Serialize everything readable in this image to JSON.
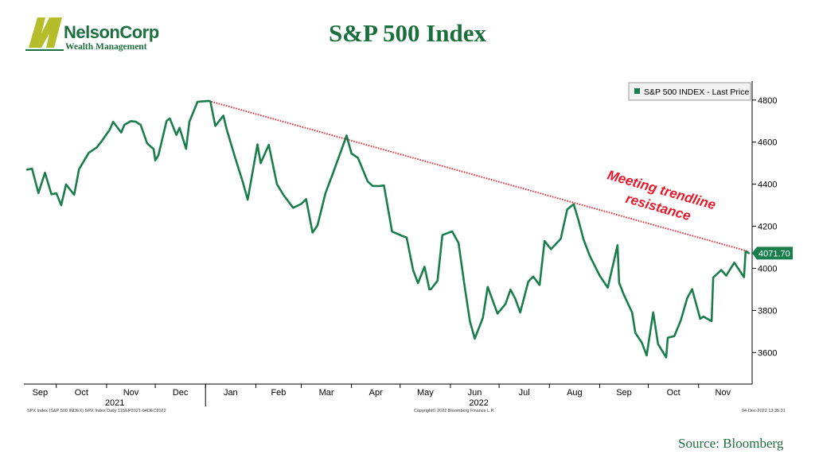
{
  "brand": {
    "logo_mark": "N",
    "name": "NelsonCorp",
    "subtitle": "Wealth Management",
    "colors": {
      "green": "#1d6f3f",
      "olive": "#b5bd2b"
    }
  },
  "page_title": "S&P 500 Index",
  "source": "Source:  Bloomberg",
  "footer": {
    "left": "SPX Index (S&P 500 INDEX) SPX Index  Daily 11SEP2021-04DEC2022",
    "middle": "Copyright© 2022 Bloomberg Finance L.P.",
    "right": "04-Dec-2022 13:35:31"
  },
  "colors": {
    "series": "#1a7d4c",
    "trendline": "#e8333a",
    "annotation": "#e8182a"
  },
  "chart_data": {
    "type": "line",
    "title": "",
    "xlabel": "",
    "ylabel": "",
    "ylim": [
      3450,
      4890
    ],
    "yticks": [
      3600,
      3800,
      4000,
      4200,
      4400,
      4600,
      4800
    ],
    "y_axis_side": "right",
    "grid": false,
    "legend": {
      "position": "top-right",
      "entries": [
        "S&P 500 INDEX - Last Price"
      ]
    },
    "x_month_labels": [
      "Sep",
      "Oct",
      "Nov",
      "Dec",
      "Jan",
      "Feb",
      "Mar",
      "Apr",
      "May",
      "Jun",
      "Jul",
      "Aug",
      "Sep",
      "Oct",
      "Nov"
    ],
    "year_labels": [
      {
        "text": "2021",
        "under": [
          "Sep",
          "Oct",
          "Nov",
          "Dec"
        ]
      },
      {
        "text": "2022",
        "under": [
          "Jan",
          "Feb",
          "Mar",
          "Apr",
          "May",
          "Jun",
          "Jul",
          "Aug",
          "Sep",
          "Oct",
          "Nov"
        ]
      }
    ],
    "x_start": "2021-09-11",
    "x_end": "2022-12-04",
    "last_price_label": "4071.70",
    "series": [
      {
        "name": "S&P 500 INDEX - Last Price",
        "points": [
          [
            "2021-09-13",
            4469
          ],
          [
            "2021-09-16",
            4474
          ],
          [
            "2021-09-20",
            4358
          ],
          [
            "2021-09-24",
            4455
          ],
          [
            "2021-09-28",
            4352
          ],
          [
            "2021-10-01",
            4357
          ],
          [
            "2021-10-04",
            4300
          ],
          [
            "2021-10-07",
            4399
          ],
          [
            "2021-10-12",
            4350
          ],
          [
            "2021-10-15",
            4471
          ],
          [
            "2021-10-21",
            4549
          ],
          [
            "2021-10-26",
            4575
          ],
          [
            "2021-10-29",
            4605
          ],
          [
            "2021-11-03",
            4660
          ],
          [
            "2021-11-05",
            4697
          ],
          [
            "2021-11-10",
            4646
          ],
          [
            "2021-11-12",
            4682
          ],
          [
            "2021-11-16",
            4700
          ],
          [
            "2021-11-19",
            4697
          ],
          [
            "2021-11-22",
            4682
          ],
          [
            "2021-11-26",
            4594
          ],
          [
            "2021-11-30",
            4567
          ],
          [
            "2021-12-01",
            4513
          ],
          [
            "2021-12-03",
            4538
          ],
          [
            "2021-12-08",
            4701
          ],
          [
            "2021-12-10",
            4712
          ],
          [
            "2021-12-14",
            4634
          ],
          [
            "2021-12-16",
            4668
          ],
          [
            "2021-12-20",
            4568
          ],
          [
            "2021-12-22",
            4696
          ],
          [
            "2021-12-27",
            4791
          ],
          [
            "2021-12-29",
            4793
          ],
          [
            "2022-01-03",
            4796
          ],
          [
            "2022-01-04",
            4793
          ],
          [
            "2022-01-07",
            4677
          ],
          [
            "2022-01-12",
            4726
          ],
          [
            "2022-01-14",
            4662
          ],
          [
            "2022-01-19",
            4533
          ],
          [
            "2022-01-24",
            4410
          ],
          [
            "2022-01-27",
            4326
          ],
          [
            "2022-02-02",
            4589
          ],
          [
            "2022-02-04",
            4500
          ],
          [
            "2022-02-09",
            4587
          ],
          [
            "2022-02-14",
            4401
          ],
          [
            "2022-02-18",
            4349
          ],
          [
            "2022-02-24",
            4288
          ],
          [
            "2022-03-01",
            4306
          ],
          [
            "2022-03-04",
            4329
          ],
          [
            "2022-03-08",
            4170
          ],
          [
            "2022-03-11",
            4204
          ],
          [
            "2022-03-16",
            4358
          ],
          [
            "2022-03-21",
            4461
          ],
          [
            "2022-03-29",
            4631
          ],
          [
            "2022-04-01",
            4546
          ],
          [
            "2022-04-05",
            4525
          ],
          [
            "2022-04-11",
            4413
          ],
          [
            "2022-04-14",
            4392
          ],
          [
            "2022-04-18",
            4391
          ],
          [
            "2022-04-21",
            4394
          ],
          [
            "2022-04-26",
            4175
          ],
          [
            "2022-05-02",
            4155
          ],
          [
            "2022-05-05",
            4147
          ],
          [
            "2022-05-09",
            3991
          ],
          [
            "2022-05-12",
            3930
          ],
          [
            "2022-05-16",
            4008
          ],
          [
            "2022-05-19",
            3900
          ],
          [
            "2022-05-20",
            3901
          ],
          [
            "2022-05-24",
            3941
          ],
          [
            "2022-05-27",
            4158
          ],
          [
            "2022-06-02",
            4176
          ],
          [
            "2022-06-06",
            4121
          ],
          [
            "2022-06-10",
            3901
          ],
          [
            "2022-06-13",
            3749
          ],
          [
            "2022-06-16",
            3666
          ],
          [
            "2022-06-21",
            3765
          ],
          [
            "2022-06-24",
            3912
          ],
          [
            "2022-06-30",
            3785
          ],
          [
            "2022-07-05",
            3831
          ],
          [
            "2022-07-08",
            3899
          ],
          [
            "2022-07-11",
            3855
          ],
          [
            "2022-07-14",
            3790
          ],
          [
            "2022-07-19",
            3937
          ],
          [
            "2022-07-22",
            3961
          ],
          [
            "2022-07-26",
            3921
          ],
          [
            "2022-07-29",
            4130
          ],
          [
            "2022-08-02",
            4091
          ],
          [
            "2022-08-08",
            4140
          ],
          [
            "2022-08-12",
            4280
          ],
          [
            "2022-08-16",
            4305
          ],
          [
            "2022-08-19",
            4228
          ],
          [
            "2022-08-22",
            4138
          ],
          [
            "2022-08-26",
            4058
          ],
          [
            "2022-09-01",
            3966
          ],
          [
            "2022-09-06",
            3908
          ],
          [
            "2022-09-12",
            4110
          ],
          [
            "2022-09-13",
            3932
          ],
          [
            "2022-09-16",
            3873
          ],
          [
            "2022-09-21",
            3790
          ],
          [
            "2022-09-23",
            3693
          ],
          [
            "2022-09-27",
            3647
          ],
          [
            "2022-09-30",
            3586
          ],
          [
            "2022-10-04",
            3791
          ],
          [
            "2022-10-07",
            3640
          ],
          [
            "2022-10-12",
            3577
          ],
          [
            "2022-10-13",
            3670
          ],
          [
            "2022-10-17",
            3678
          ],
          [
            "2022-10-21",
            3752
          ],
          [
            "2022-10-25",
            3859
          ],
          [
            "2022-10-28",
            3901
          ],
          [
            "2022-11-02",
            3760
          ],
          [
            "2022-11-04",
            3771
          ],
          [
            "2022-11-09",
            3749
          ],
          [
            "2022-11-10",
            3956
          ],
          [
            "2022-11-15",
            3992
          ],
          [
            "2022-11-18",
            3965
          ],
          [
            "2022-11-23",
            4027
          ],
          [
            "2022-11-29",
            3958
          ],
          [
            "2022-11-30",
            4080
          ],
          [
            "2022-12-02",
            4072
          ]
        ]
      }
    ],
    "annotations": [
      {
        "type": "trendline",
        "style": "dotted",
        "from": [
          "2022-01-03",
          4796
        ],
        "to": [
          "2022-12-02",
          4080
        ]
      },
      {
        "type": "text",
        "lines": [
          "Meeting trendline",
          "resistance"
        ],
        "style": "bold italic"
      }
    ]
  }
}
